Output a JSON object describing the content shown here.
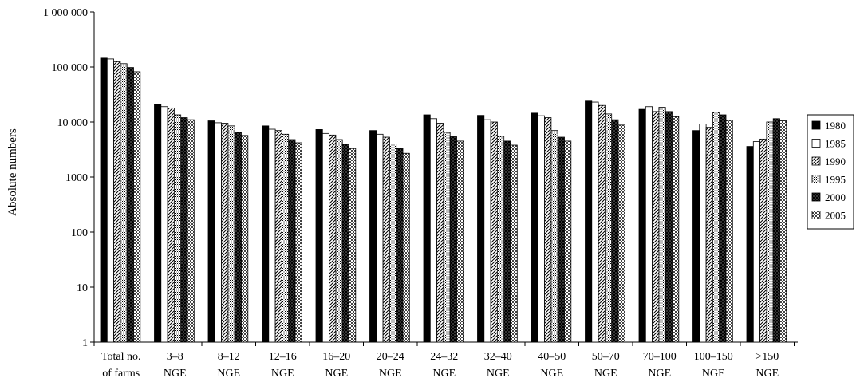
{
  "chart_data": {
    "type": "bar",
    "yscale": "log",
    "ylim": [
      1,
      1000000
    ],
    "ylabel": "Absolute numbers",
    "xlabel": "",
    "title": "",
    "legend_position": "right",
    "y_ticks": [
      {
        "value": 1,
        "label": "1"
      },
      {
        "value": 10,
        "label": "10"
      },
      {
        "value": 100,
        "label": "100"
      },
      {
        "value": 1000,
        "label": "1000"
      },
      {
        "value": 10000,
        "label": "10 000"
      },
      {
        "value": 100000,
        "label": "100 000"
      },
      {
        "value": 1000000,
        "label": "1 000 000"
      }
    ],
    "categories": [
      {
        "line1": "Total no.",
        "line2": "of farms"
      },
      {
        "line1": "3–8",
        "line2": "NGE"
      },
      {
        "line1": "8–12",
        "line2": "NGE"
      },
      {
        "line1": "12–16",
        "line2": "NGE"
      },
      {
        "line1": "16–20",
        "line2": "NGE"
      },
      {
        "line1": "20–24",
        "line2": "NGE"
      },
      {
        "line1": "24–32",
        "line2": "NGE"
      },
      {
        "line1": "32–40",
        "line2": "NGE"
      },
      {
        "line1": "40–50",
        "line2": "NGE"
      },
      {
        "line1": "50–70",
        "line2": "NGE"
      },
      {
        "line1": "70–100",
        "line2": "NGE"
      },
      {
        "line1": "100–150",
        "line2": "NGE"
      },
      {
        "line1": ">150",
        "line2": "NGE"
      }
    ],
    "series": [
      {
        "name": "1980",
        "pattern": "solid-black",
        "values": [
          145000,
          21000,
          10500,
          8500,
          7300,
          7000,
          13500,
          13200,
          14500,
          24000,
          17000,
          7000,
          3600
        ]
      },
      {
        "name": "1985",
        "pattern": "white",
        "values": [
          140000,
          19000,
          9700,
          7400,
          6200,
          6000,
          11500,
          11000,
          13000,
          23000,
          19000,
          9200,
          4400
        ]
      },
      {
        "name": "1990",
        "pattern": "diagonal-lines",
        "values": [
          125000,
          18000,
          9500,
          7000,
          5800,
          5300,
          9500,
          10000,
          12000,
          20000,
          15500,
          8000,
          4900
        ]
      },
      {
        "name": "1995",
        "pattern": "dotted",
        "values": [
          115000,
          13500,
          8500,
          6000,
          4800,
          4000,
          6500,
          5500,
          7000,
          14000,
          18500,
          15000,
          10000
        ]
      },
      {
        "name": "2000",
        "pattern": "crosshatch-dark",
        "values": [
          98000,
          12000,
          6500,
          4800,
          3900,
          3300,
          5400,
          4500,
          5300,
          11000,
          15500,
          13500,
          11500
        ]
      },
      {
        "name": "2005",
        "pattern": "checkered",
        "values": [
          82000,
          11000,
          5700,
          4200,
          3300,
          2700,
          4500,
          3800,
          4500,
          8800,
          12500,
          10700,
          10500
        ]
      }
    ]
  }
}
